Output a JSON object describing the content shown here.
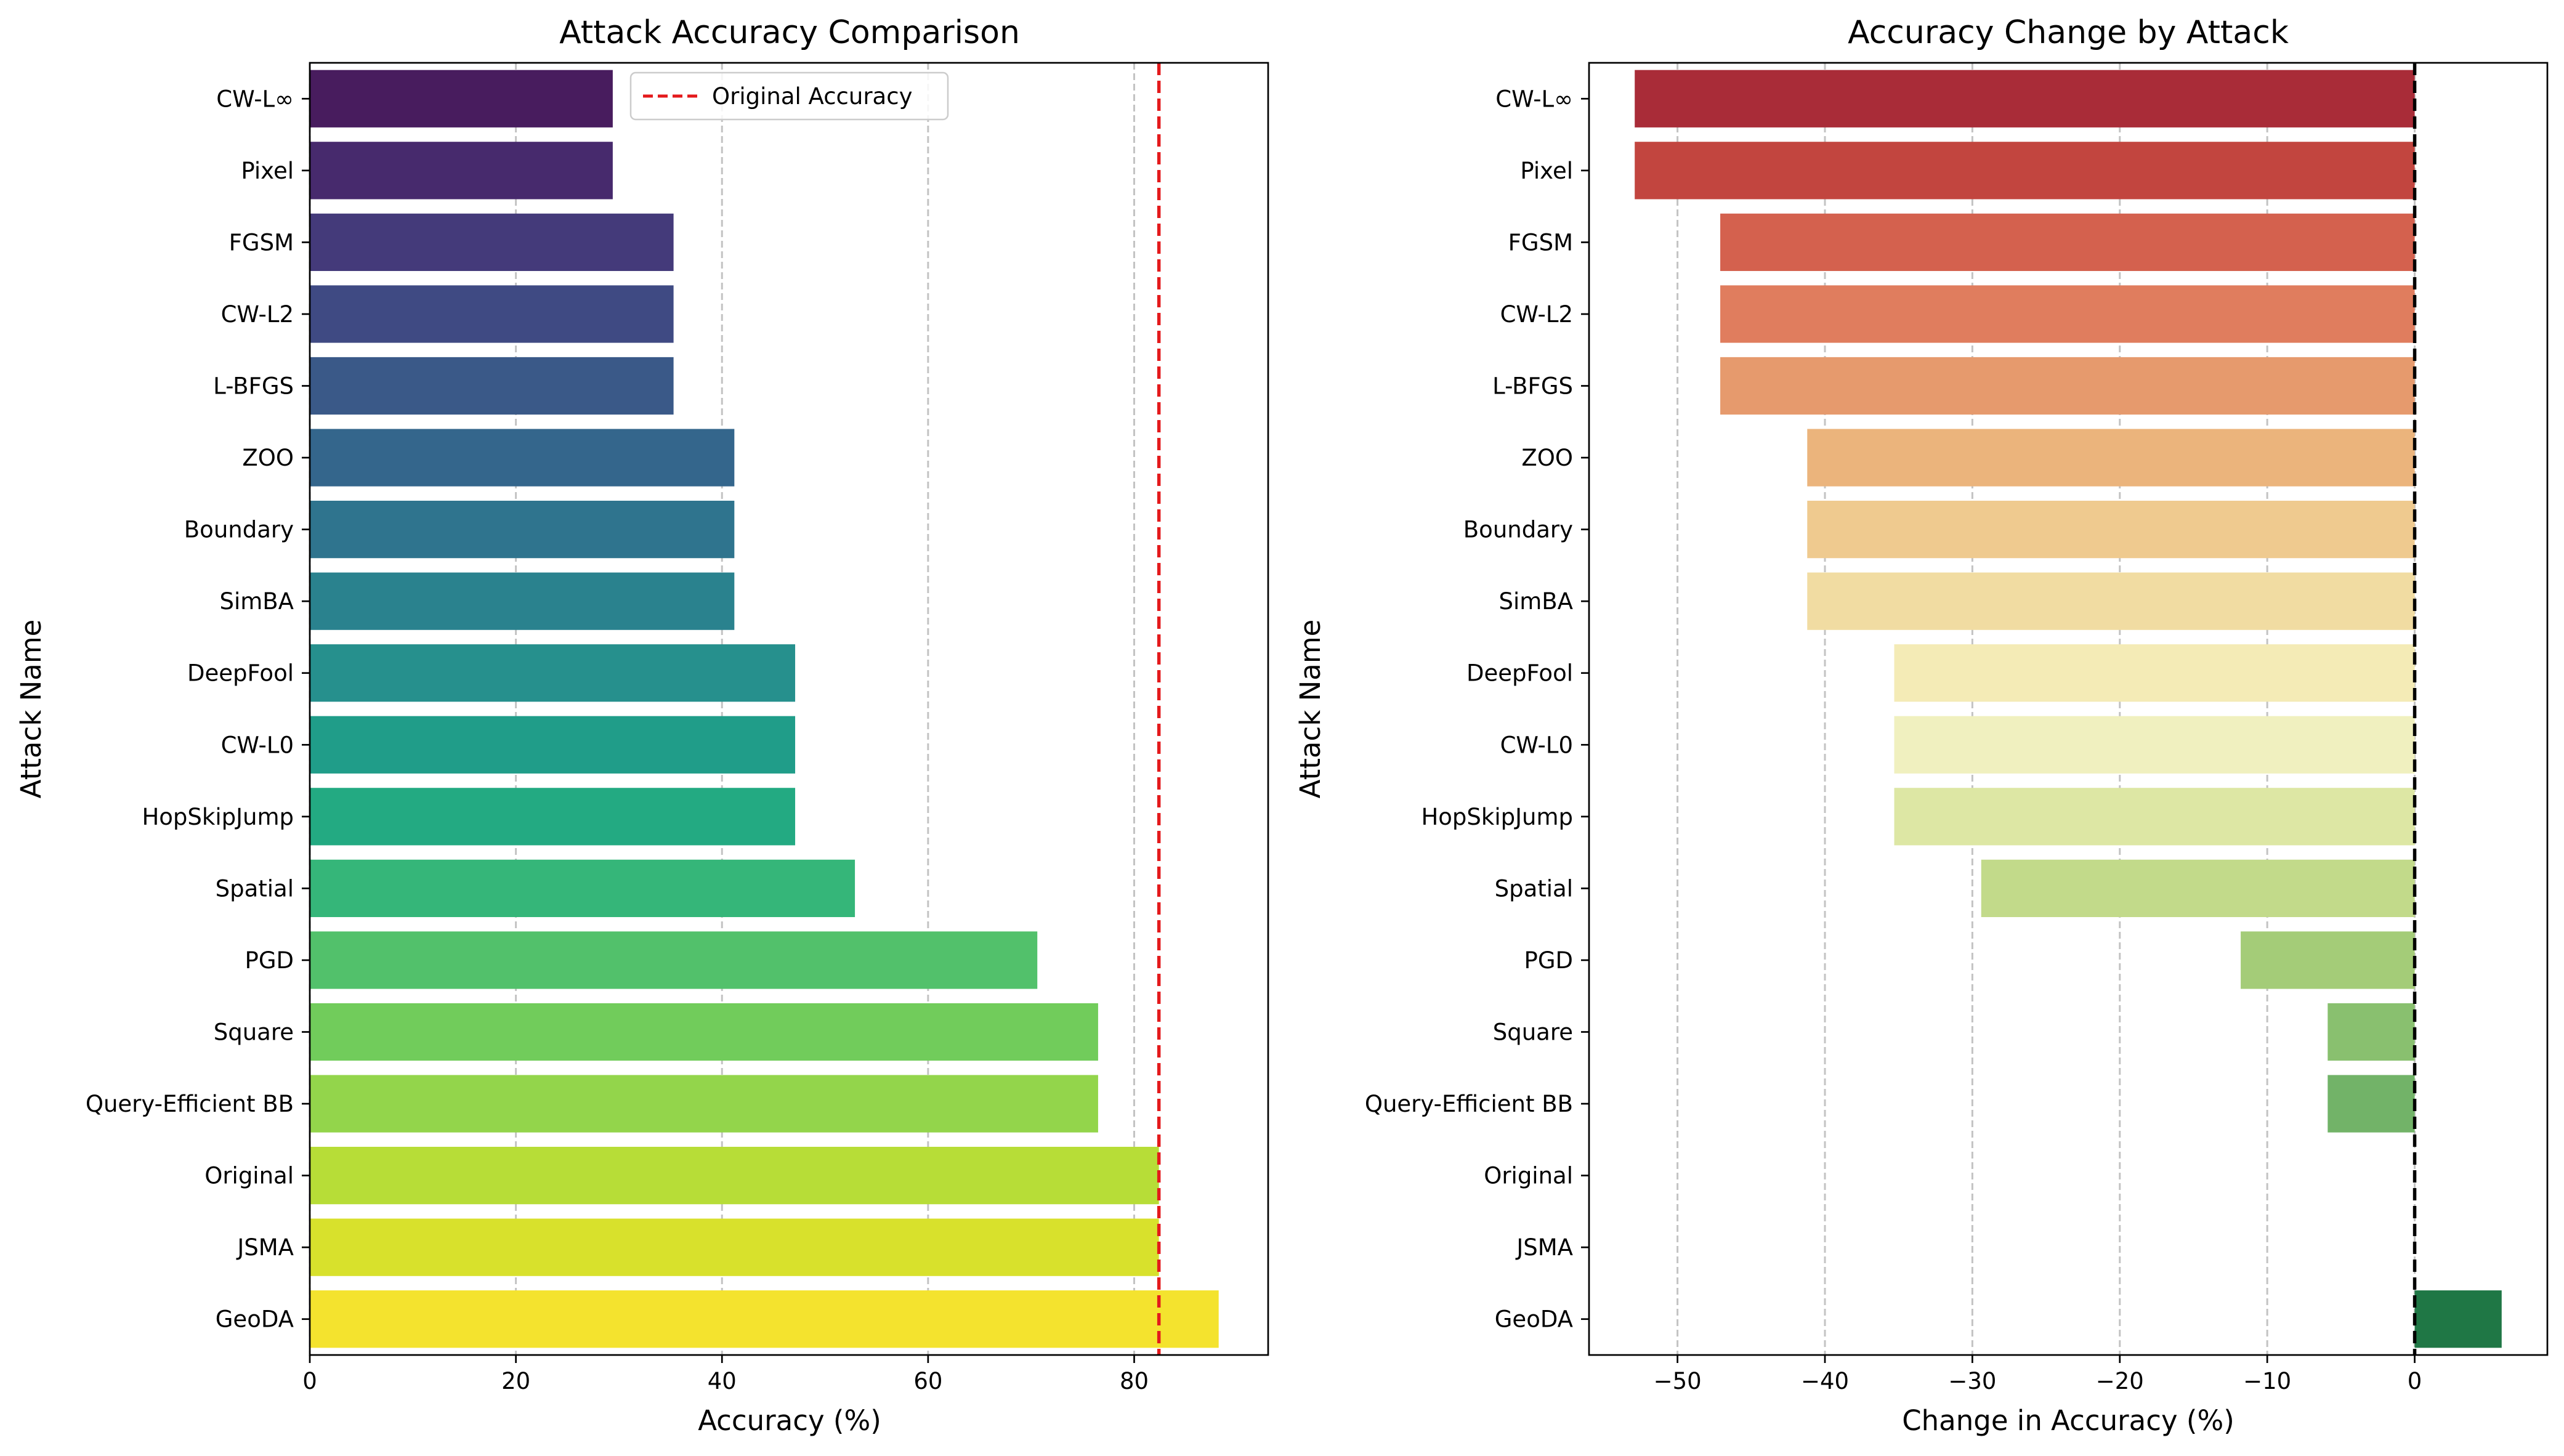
{
  "figure": {
    "charts": [
      {
        "title": "Attack Accuracy Comparison",
        "xlabel": "Accuracy (%)",
        "ylabel": "Attack Name",
        "legend_label": "Original Accuracy"
      },
      {
        "title": "Accuracy Change by Attack",
        "xlabel": "Change in Accuracy (%)",
        "ylabel": "Attack Name"
      }
    ]
  },
  "chart_data": [
    {
      "type": "bar",
      "orientation": "horizontal",
      "title": "Attack Accuracy Comparison",
      "xlabel": "Accuracy (%)",
      "ylabel": "Attack Name",
      "categories": [
        "CW-L∞",
        "Pixel",
        "FGSM",
        "CW-L2",
        "L-BFGS",
        "ZOO",
        "Boundary",
        "SimBA",
        "DeepFool",
        "CW-L0",
        "HopSkipJump",
        "Spatial",
        "PGD",
        "Square",
        "Query-Efficient BB",
        "Original",
        "JSMA",
        "GeoDA"
      ],
      "values": [
        29.4,
        29.4,
        35.3,
        35.3,
        35.3,
        41.2,
        41.2,
        41.2,
        47.1,
        47.1,
        47.1,
        52.9,
        70.6,
        76.5,
        76.5,
        82.4,
        82.4,
        88.2
      ],
      "xlim": [
        0,
        93
      ],
      "xticks": [
        0,
        20,
        40,
        60,
        80
      ],
      "grid": "x",
      "reference_line": {
        "value": 82.4,
        "label": "Original Accuracy",
        "style": "dashed",
        "color": "#e41a1c"
      },
      "legend": "top-center",
      "palette": "viridis",
      "colors": [
        "#481c5e",
        "#472a6d",
        "#443a7a",
        "#3f4a83",
        "#3a5988",
        "#34668c",
        "#2f748e",
        "#2a828e",
        "#26908d",
        "#209d89",
        "#23aa82",
        "#35b679",
        "#52c16b",
        "#71cc5b",
        "#93d54b",
        "#b7dd37",
        "#d8e12c",
        "#f4e32e"
      ]
    },
    {
      "type": "bar",
      "orientation": "horizontal",
      "title": "Accuracy Change by Attack",
      "xlabel": "Change in Accuracy (%)",
      "ylabel": "Attack Name",
      "categories": [
        "CW-L∞",
        "Pixel",
        "FGSM",
        "CW-L2",
        "L-BFGS",
        "ZOO",
        "Boundary",
        "SimBA",
        "DeepFool",
        "CW-L0",
        "HopSkipJump",
        "Spatial",
        "PGD",
        "Square",
        "Query-Efficient BB",
        "Original",
        "JSMA",
        "GeoDA"
      ],
      "values": [
        -52.9,
        -52.9,
        -47.1,
        -47.1,
        -47.1,
        -41.2,
        -41.2,
        -41.2,
        -35.3,
        -35.3,
        -35.3,
        -29.4,
        -11.8,
        -5.9,
        -5.9,
        0,
        0,
        5.9
      ],
      "xlim": [
        -56,
        9
      ],
      "xticks": [
        -50,
        -40,
        -30,
        -20,
        -10,
        0
      ],
      "grid": "x",
      "reference_line": {
        "value": 0,
        "style": "dashed",
        "color": "#000000"
      },
      "palette": "RdYlGn",
      "colors": [
        "#a92c38",
        "#c2453f",
        "#d4614e",
        "#e07d5e",
        "#e69a6d",
        "#ebb47c",
        "#efca8f",
        "#f1dca2",
        "#f4ebb6",
        "#f0f0bf",
        "#dde7a4",
        "#c2da8a",
        "#a4cc78",
        "#89c06f",
        "#72b368",
        "#57a25e",
        "#3b8d52",
        "#1f7745"
      ]
    }
  ]
}
